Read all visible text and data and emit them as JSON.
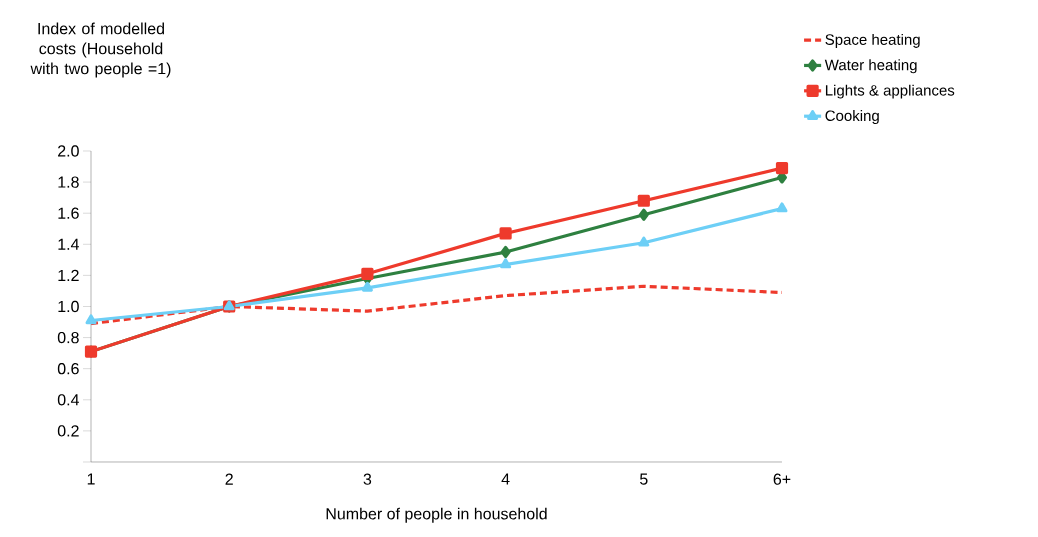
{
  "chart_data": {
    "type": "line",
    "ylabel": "Index of modelled costs (Household with two people =1)",
    "xlabel": "Number of people in household",
    "categories": [
      "1",
      "2",
      "3",
      "4",
      "5",
      "6+"
    ],
    "series": [
      {
        "name": "Space heating",
        "color": "#ee3a2c",
        "line_style": "dashed",
        "marker": "none",
        "values": [
          0.89,
          1.0,
          0.97,
          1.07,
          1.13,
          1.09
        ]
      },
      {
        "name": "Water heating",
        "color": "#2e8040",
        "line_style": "solid",
        "marker": "diamond",
        "values": [
          0.71,
          1.0,
          1.18,
          1.35,
          1.59,
          1.83
        ]
      },
      {
        "name": "Lights & appliances",
        "color": "#ee3a2c",
        "line_style": "solid",
        "marker": "square",
        "values": [
          0.71,
          1.0,
          1.21,
          1.47,
          1.68,
          1.89
        ]
      },
      {
        "name": "Cooking",
        "color": "#6dcff6",
        "line_style": "solid",
        "marker": "triangle",
        "values": [
          0.91,
          1.0,
          1.12,
          1.27,
          1.41,
          1.63
        ]
      }
    ],
    "ylim": [
      0,
      2.0
    ],
    "yticks": [
      {
        "value": 0,
        "label": null
      },
      0.2,
      0.4,
      0.6,
      0.8,
      {
        "value": 1,
        "label": "1.0"
      },
      1.2,
      1.4,
      1.6,
      1.8,
      {
        "value": 2,
        "label": "2.0"
      }
    ],
    "legend": "top right",
    "grid": false
  }
}
